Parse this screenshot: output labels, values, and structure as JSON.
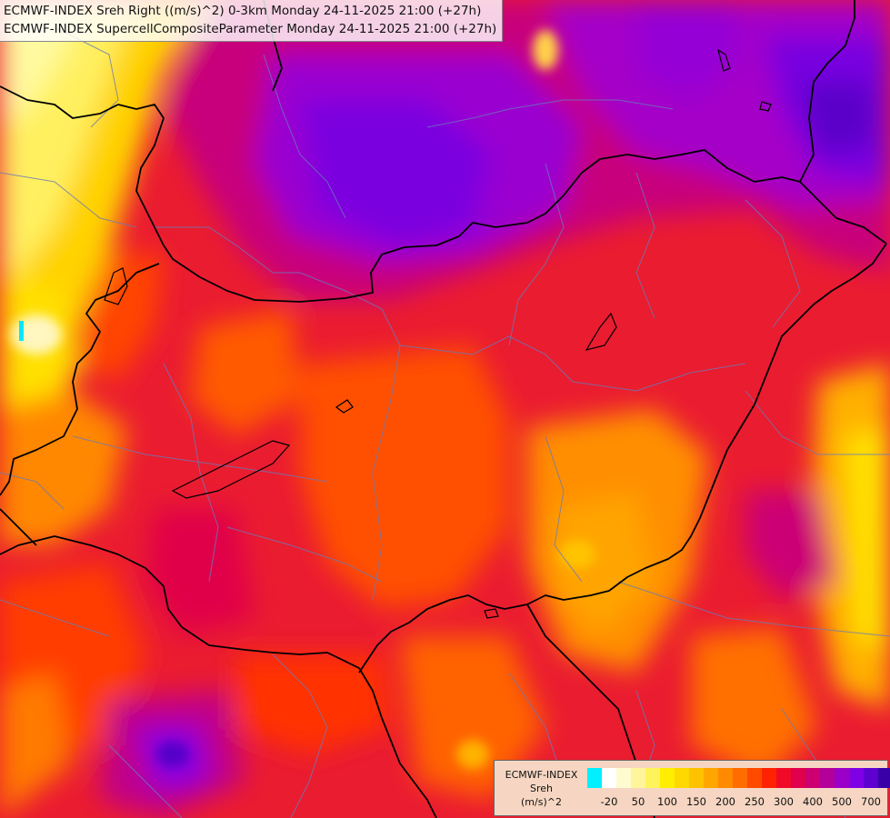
{
  "title": {
    "line1": "ECMWF-INDEX Sreh Right ((m/s)^2) 0-3km Monday 24-11-2025 21:00 (+27h)",
    "line2": "ECMWF-INDEX SupercellCompositeParameter Monday 24-11-2025 21:00 (+27h)"
  },
  "legend": {
    "label_lines": [
      "ECMWF-INDEX",
      "Sreh",
      "(m/s)^2"
    ],
    "colors": [
      "#00f0ff",
      "#ffffff",
      "#fffbd0",
      "#fff59a",
      "#fff35c",
      "#ffee00",
      "#ffd800",
      "#ffc200",
      "#ffa600",
      "#ff8a00",
      "#ff6c00",
      "#ff4a00",
      "#ff2200",
      "#f00a28",
      "#e0004e",
      "#cc0070",
      "#b4009a",
      "#9a00c8",
      "#8000e6",
      "#5e00d0",
      "#3a00a8",
      "#000080"
    ],
    "tick_labels": [
      "-20",
      "50",
      "100",
      "150",
      "200",
      "250",
      "300",
      "400",
      "500",
      "700"
    ]
  }
}
